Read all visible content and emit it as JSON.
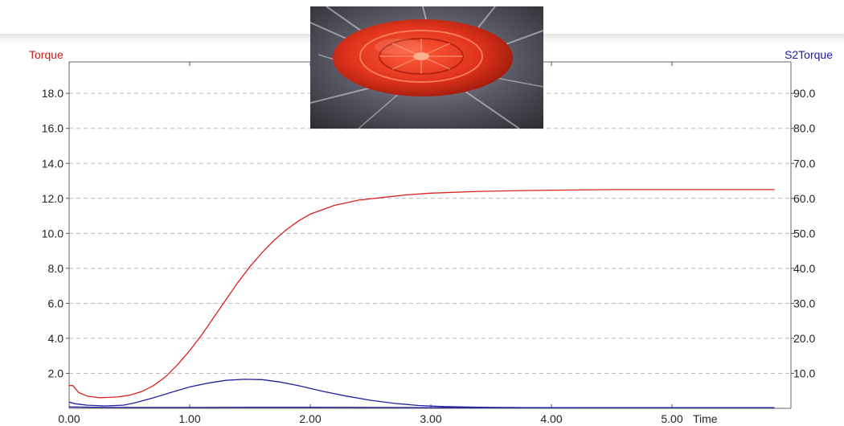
{
  "chart_data": {
    "type": "line",
    "xlabel": "Time",
    "left_axis_label": "Torque",
    "right_axis_label": "S2Torque",
    "xlim": [
      0,
      5.85
    ],
    "x_ticks": [
      "0.00",
      "1.00",
      "2.00",
      "3.00",
      "4.00",
      "5.00"
    ],
    "y_left_range": [
      0,
      19.8
    ],
    "y_left_ticks": [
      "2.0",
      "4.0",
      "6.0",
      "8.0",
      "10.0",
      "12.0",
      "14.0",
      "16.0",
      "18.0"
    ],
    "y_right_range": [
      0,
      99
    ],
    "y_right_ticks": [
      "10.0",
      "20.0",
      "30.0",
      "40.0",
      "50.0",
      "60.0",
      "70.0",
      "80.0",
      "90.0"
    ],
    "grid": "horizontal dashed",
    "series": [
      {
        "name": "Torque",
        "axis": "left",
        "color": "#d8231c",
        "points": [
          [
            0.0,
            1.3
          ],
          [
            0.03,
            1.3
          ],
          [
            0.08,
            0.9
          ],
          [
            0.15,
            0.7
          ],
          [
            0.25,
            0.6
          ],
          [
            0.4,
            0.65
          ],
          [
            0.5,
            0.75
          ],
          [
            0.6,
            0.95
          ],
          [
            0.7,
            1.3
          ],
          [
            0.8,
            1.8
          ],
          [
            0.9,
            2.5
          ],
          [
            1.0,
            3.3
          ],
          [
            1.1,
            4.2
          ],
          [
            1.2,
            5.2
          ],
          [
            1.3,
            6.2
          ],
          [
            1.4,
            7.2
          ],
          [
            1.5,
            8.1
          ],
          [
            1.6,
            8.9
          ],
          [
            1.7,
            9.6
          ],
          [
            1.8,
            10.2
          ],
          [
            1.9,
            10.7
          ],
          [
            2.0,
            11.1
          ],
          [
            2.2,
            11.6
          ],
          [
            2.4,
            11.9
          ],
          [
            2.6,
            12.05
          ],
          [
            2.8,
            12.2
          ],
          [
            3.0,
            12.3
          ],
          [
            3.4,
            12.4
          ],
          [
            3.8,
            12.45
          ],
          [
            4.5,
            12.5
          ],
          [
            5.0,
            12.5
          ],
          [
            5.85,
            12.5
          ]
        ]
      },
      {
        "name": "S2Torque",
        "axis": "right",
        "color": "#2020a0",
        "points": [
          [
            0.0,
            1.8
          ],
          [
            0.05,
            1.3
          ],
          [
            0.15,
            0.9
          ],
          [
            0.3,
            0.7
          ],
          [
            0.45,
            0.9
          ],
          [
            0.55,
            1.6
          ],
          [
            0.7,
            3.0
          ],
          [
            0.85,
            4.6
          ],
          [
            1.0,
            6.1
          ],
          [
            1.15,
            7.2
          ],
          [
            1.3,
            8.0
          ],
          [
            1.45,
            8.3
          ],
          [
            1.6,
            8.2
          ],
          [
            1.75,
            7.5
          ],
          [
            1.9,
            6.5
          ],
          [
            2.1,
            4.9
          ],
          [
            2.3,
            3.5
          ],
          [
            2.5,
            2.3
          ],
          [
            2.7,
            1.4
          ],
          [
            2.9,
            0.8
          ],
          [
            3.1,
            0.5
          ],
          [
            3.4,
            0.3
          ],
          [
            3.8,
            0.2
          ],
          [
            4.3,
            0.15
          ],
          [
            5.0,
            0.15
          ],
          [
            5.85,
            0.15
          ]
        ]
      },
      {
        "name": "",
        "axis": "right",
        "color": "#2020a0",
        "points": [
          [
            0.0,
            0.4
          ],
          [
            0.2,
            0.3
          ],
          [
            0.5,
            0.25
          ],
          [
            1.0,
            0.25
          ],
          [
            1.5,
            0.3
          ],
          [
            2.0,
            0.3
          ],
          [
            2.5,
            0.25
          ],
          [
            3.0,
            0.2
          ],
          [
            4.0,
            0.15
          ],
          [
            5.0,
            0.15
          ],
          [
            5.85,
            0.15
          ]
        ]
      }
    ]
  }
}
